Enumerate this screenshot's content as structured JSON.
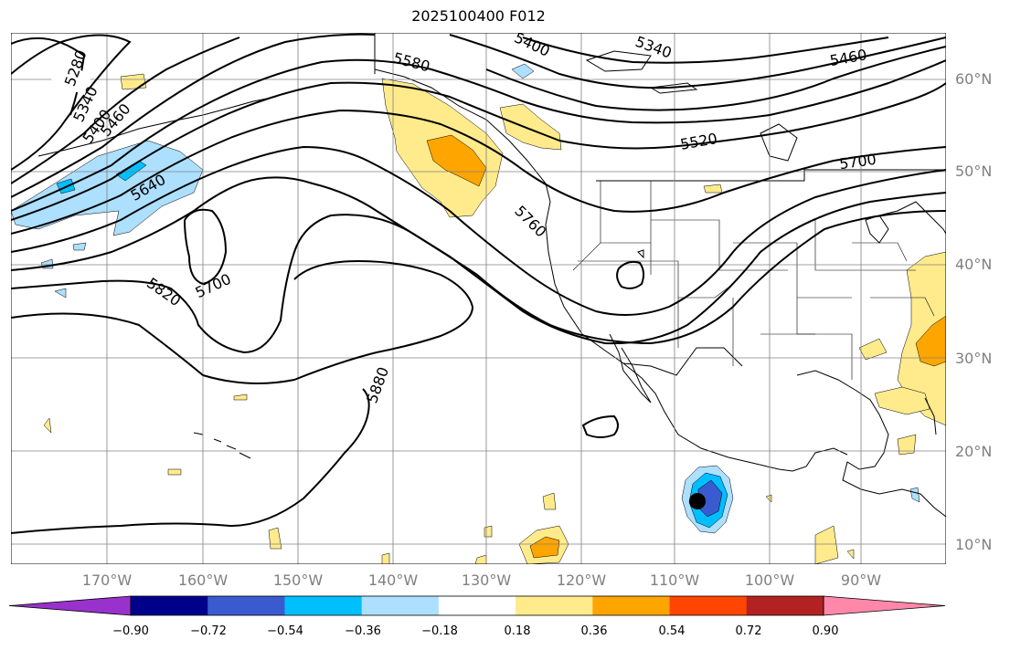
{
  "title": "2025100400 F012",
  "lat_labels": [
    "60°N",
    "50°N",
    "40°N",
    "30°N",
    "20°N",
    "10°N"
  ],
  "lon_labels": [
    "170°W",
    "160°W",
    "150°W",
    "140°W",
    "130°W",
    "120°W",
    "110°W",
    "100°W",
    "90°W"
  ],
  "contour_labels": [
    "5280",
    "5340",
    "5400",
    "5460",
    "5640",
    "5580",
    "5400",
    "5340",
    "5460",
    "5520",
    "5700",
    "5760",
    "5700",
    "5820",
    "5880"
  ],
  "colorbar": {
    "ticks": [
      "−0.90",
      "−0.72",
      "−0.54",
      "−0.36",
      "−0.18",
      "0.18",
      "0.36",
      "0.54",
      "0.72",
      "0.90"
    ],
    "colors": [
      "#9932CC",
      "#00008B",
      "#3A5BCF",
      "#00BFFF",
      "#ADDFFF",
      "#FFFFFF",
      "#FFEB8C",
      "#FFA500",
      "#FF4500",
      "#B22222",
      "#FF88AA"
    ]
  },
  "map_colors": {
    "contour": "#000000",
    "grid": "#808080",
    "land_outline": "#000000",
    "storm_marker": "#000000"
  }
}
